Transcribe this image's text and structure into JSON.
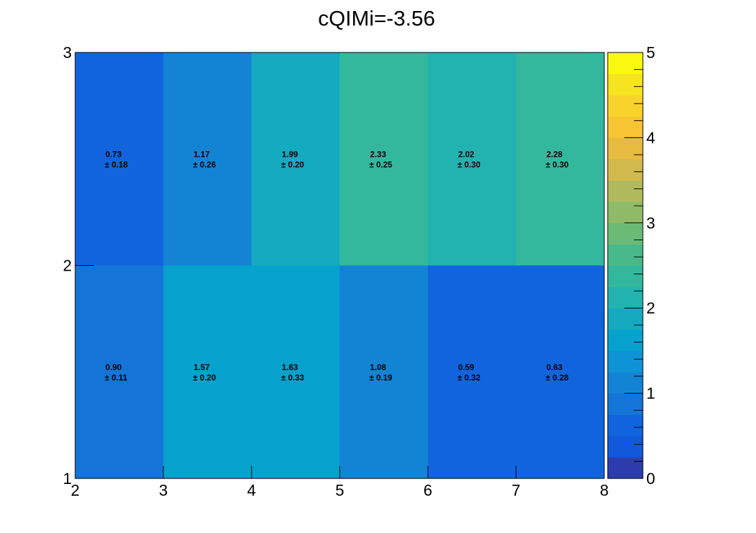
{
  "chart_data": {
    "type": "heatmap",
    "title": "cQIMi=-3.56",
    "xlabel": "",
    "ylabel": "",
    "x_edges": [
      2,
      3,
      4,
      5,
      6,
      7,
      8
    ],
    "y_edges": [
      1,
      2,
      3
    ],
    "xlim": [
      2,
      8
    ],
    "ylim": [
      1,
      3
    ],
    "x_ticks": [
      "2",
      "3",
      "4",
      "5",
      "6",
      "7",
      "8"
    ],
    "y_ticks": [
      "1",
      "2",
      "3"
    ],
    "zlim": [
      0,
      5
    ],
    "z_ticks": [
      "0",
      "1",
      "2",
      "3",
      "4",
      "5"
    ],
    "rows": [
      {
        "y": [
          2,
          3
        ],
        "cells": [
          {
            "value": "0.73",
            "error": "± 0.18"
          },
          {
            "value": "1.17",
            "error": "± 0.26"
          },
          {
            "value": "1.99",
            "error": "± 0.20"
          },
          {
            "value": "2.33",
            "error": "± 0.25"
          },
          {
            "value": "2.02",
            "error": "± 0.30"
          },
          {
            "value": "2.28",
            "error": "± 0.30"
          }
        ]
      },
      {
        "y": [
          1,
          2
        ],
        "cells": [
          {
            "value": "0.90",
            "error": "± 0.11"
          },
          {
            "value": "1.57",
            "error": "± 0.20"
          },
          {
            "value": "1.63",
            "error": "± 0.33"
          },
          {
            "value": "1.08",
            "error": "± 0.19"
          },
          {
            "value": "0.59",
            "error": "± 0.32"
          },
          {
            "value": "0.63",
            "error": "± 0.28"
          }
        ]
      }
    ],
    "colorscale": [
      "#2c3cac",
      "#1258db",
      "#1164dd",
      "#1474d8",
      "#1384d4",
      "#0e93d4",
      "#06a1cc",
      "#14aac0",
      "#22b2b0",
      "#33b89e",
      "#4ab989",
      "#6bbb77",
      "#8fbb69",
      "#b0ba5c",
      "#d1b94d",
      "#e6bb40",
      "#f7c434",
      "#f8d32b",
      "#f5e41f",
      "#f9f90f"
    ],
    "grid": false,
    "legend": "colorbar-right"
  }
}
